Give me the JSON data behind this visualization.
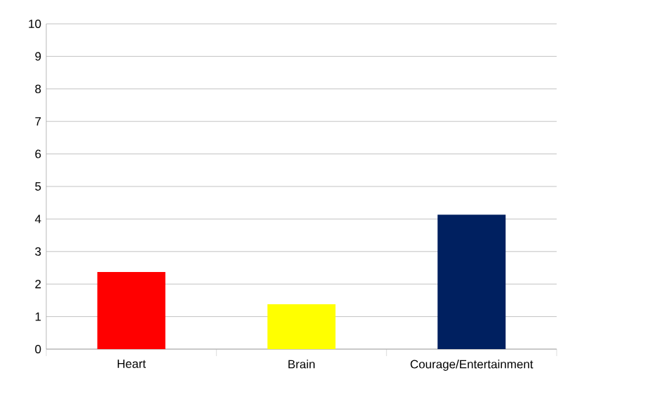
{
  "chart_data": {
    "type": "bar",
    "categories": [
      "Heart",
      "Brain",
      "Courage/Entertainment"
    ],
    "values": [
      2.37,
      1.38,
      4.13
    ],
    "colors": [
      "#ff0000",
      "#ffff00",
      "#002060"
    ],
    "ylim": [
      0,
      10
    ],
    "yticks": [
      0,
      1,
      2,
      3,
      4,
      5,
      6,
      7,
      8,
      9,
      10
    ],
    "grid": "y"
  }
}
